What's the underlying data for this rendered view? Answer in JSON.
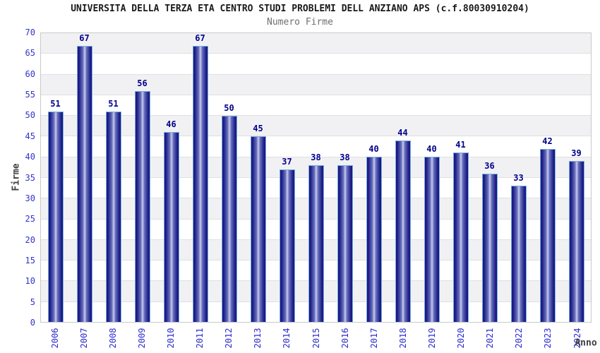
{
  "chart_data": {
    "type": "bar",
    "title": "UNIVERSITA DELLA TERZA ETA CENTRO STUDI PROBLEMI DELL ANZIANO APS (c.f.80030910204)",
    "subtitle": "Numero Firme",
    "xlabel": "Anno",
    "ylabel": "Firme",
    "categories": [
      "2006",
      "2007",
      "2008",
      "2009",
      "2010",
      "2011",
      "2012",
      "2013",
      "2014",
      "2015",
      "2016",
      "2017",
      "2018",
      "2019",
      "2020",
      "2021",
      "2022",
      "2023",
      "2024"
    ],
    "values": [
      51,
      67,
      51,
      56,
      46,
      67,
      50,
      45,
      37,
      38,
      38,
      40,
      44,
      40,
      41,
      36,
      33,
      42,
      39
    ],
    "ylim": [
      0,
      70
    ],
    "ytick_step": 5,
    "grid": true,
    "legend_position": "none",
    "value_labels_shown": true,
    "colors": {
      "bar_dark": "#15157a",
      "bar_mid": "#6a72bd",
      "bar_highlight": "#c9cdef",
      "bar_outline": "#74aee0",
      "tick_text": "#3333cc",
      "value_label_text": "#00008b",
      "axis_title_text": "#404040",
      "band_shade": "#f1f1f4",
      "band_plain": "#ffffff",
      "gridline": "#e0e0e0",
      "plot_border": "#c9c9c9",
      "title_text": "#1a1a1a",
      "subtitle_text": "#6e6e6e"
    }
  }
}
